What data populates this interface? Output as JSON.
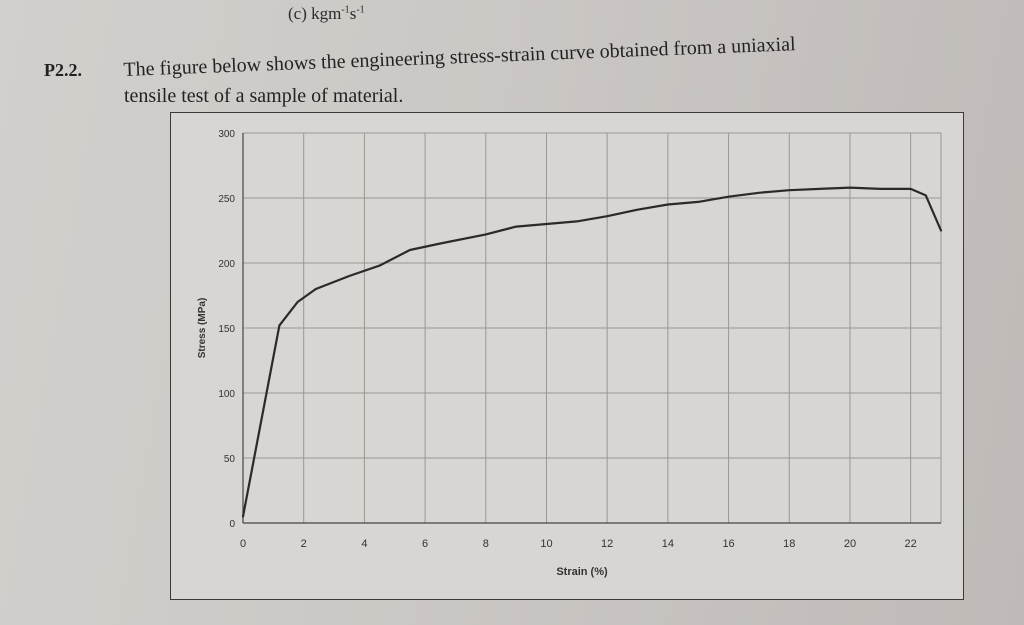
{
  "header": {
    "item_c_text": "(c) kgm",
    "item_c_sup1": "-1",
    "item_c_mid": "s",
    "item_c_sup2": "-1"
  },
  "problem": {
    "id": "P2.2.",
    "line1": "The figure below shows the engineering stress-strain curve obtained from a uniaxial",
    "line2": "tensile test of a sample of material."
  },
  "chart_data": {
    "type": "line",
    "xlabel": "Strain (%)",
    "ylabel": "Stress (MPa)",
    "xlim": [
      0,
      23
    ],
    "ylim": [
      0,
      300
    ],
    "xticks": [
      "0",
      "2",
      "4",
      "6",
      "8",
      "10",
      "12",
      "14",
      "16",
      "18",
      "20",
      "22"
    ],
    "yticks": [
      "0",
      "50",
      "100",
      "150",
      "200",
      "250",
      "300"
    ],
    "grid": true,
    "series": [
      {
        "x": [
          0,
          1.2,
          1.8,
          2.4,
          3.5,
          4.5,
          5.5,
          6.5,
          8.0,
          9.0,
          10.0,
          11.0,
          12.0,
          13.0,
          14.0,
          15.0,
          16.0,
          17.0,
          18.0,
          19.0,
          20.0,
          21.0,
          22.0,
          22.5,
          23.0
        ],
        "y": [
          5,
          152,
          170,
          180,
          190,
          198,
          210,
          215,
          222,
          228,
          230,
          232,
          236,
          241,
          245,
          247,
          251,
          254,
          256,
          257,
          258,
          257,
          257,
          252,
          225
        ]
      }
    ],
    "colors": {
      "line": "#2a2a2a",
      "grid": "#9a9794",
      "text": "#333333"
    }
  }
}
